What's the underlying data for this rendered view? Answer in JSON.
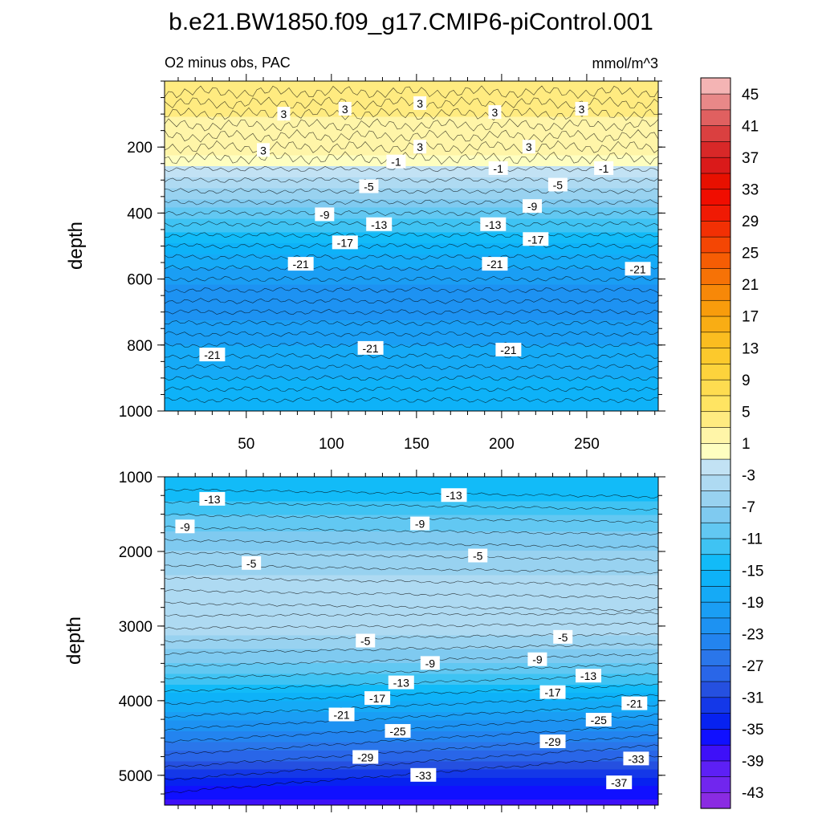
{
  "chart_data": {
    "type": "contour",
    "title": "b.e21.BW1850.f09_g17.CMIP6-piControl.001",
    "subtitle_left": "O2 minus obs, PAC",
    "subtitle_right": "mmol/m^3",
    "ylabel": "depth",
    "x_ticks": [
      "50",
      "100",
      "150",
      "200",
      "250"
    ],
    "x_tick_values": [
      50,
      100,
      150,
      200,
      250
    ],
    "xlim": [
      2,
      292
    ],
    "panels": [
      {
        "name": "upper",
        "ylim": [
          0,
          1000
        ],
        "y_ticks": [
          "200",
          "400",
          "600",
          "800",
          "1000"
        ],
        "y_tick_values": [
          200,
          400,
          600,
          800,
          1000
        ],
        "profile": [
          [
            0,
            3
          ],
          [
            100,
            3
          ],
          [
            200,
            2
          ],
          [
            240,
            0
          ],
          [
            275,
            -2
          ],
          [
            320,
            -5
          ],
          [
            380,
            -9
          ],
          [
            450,
            -13
          ],
          [
            520,
            -17
          ],
          [
            580,
            -20
          ],
          [
            650,
            -22
          ],
          [
            720,
            -21
          ],
          [
            800,
            -19
          ],
          [
            900,
            -17
          ],
          [
            1000,
            -15
          ]
        ],
        "contour_labels": [
          {
            "text": "3",
            "x": 72,
            "y": 100
          },
          {
            "text": "3",
            "x": 108,
            "y": 85
          },
          {
            "text": "3",
            "x": 152,
            "y": 68
          },
          {
            "text": "3",
            "x": 196,
            "y": 95
          },
          {
            "text": "3",
            "x": 247,
            "y": 85
          },
          {
            "text": "3",
            "x": 60,
            "y": 210
          },
          {
            "text": "3",
            "x": 152,
            "y": 200
          },
          {
            "text": "3",
            "x": 216,
            "y": 200
          },
          {
            "text": "-1",
            "x": 138,
            "y": 245
          },
          {
            "text": "-1",
            "x": 198,
            "y": 265
          },
          {
            "text": "-1",
            "x": 260,
            "y": 265
          },
          {
            "text": "-5",
            "x": 122,
            "y": 320
          },
          {
            "text": "-5",
            "x": 233,
            "y": 315
          },
          {
            "text": "-9",
            "x": 96,
            "y": 405
          },
          {
            "text": "-9",
            "x": 218,
            "y": 380
          },
          {
            "text": "-13",
            "x": 128,
            "y": 435
          },
          {
            "text": "-13",
            "x": 195,
            "y": 435
          },
          {
            "text": "-17",
            "x": 108,
            "y": 490
          },
          {
            "text": "-17",
            "x": 220,
            "y": 480
          },
          {
            "text": "-21",
            "x": 82,
            "y": 555
          },
          {
            "text": "-21",
            "x": 196,
            "y": 555
          },
          {
            "text": "-21",
            "x": 280,
            "y": 570
          },
          {
            "text": "-21",
            "x": 30,
            "y": 830
          },
          {
            "text": "-21",
            "x": 123,
            "y": 810
          },
          {
            "text": "-21",
            "x": 204,
            "y": 815
          }
        ]
      },
      {
        "name": "lower",
        "ylim": [
          1000,
          5400
        ],
        "y_ticks": [
          "1000",
          "2000",
          "3000",
          "4000",
          "5000"
        ],
        "y_tick_values": [
          1000,
          2000,
          3000,
          4000,
          5000
        ],
        "profile": [
          [
            1000,
            -15
          ],
          [
            1300,
            -13
          ],
          [
            1700,
            -9
          ],
          [
            2100,
            -6
          ],
          [
            2500,
            -4
          ],
          [
            2800,
            -4
          ],
          [
            3100,
            -5
          ],
          [
            3400,
            -8
          ],
          [
            3700,
            -12
          ],
          [
            4000,
            -17
          ],
          [
            4300,
            -22
          ],
          [
            4600,
            -26
          ],
          [
            4900,
            -31
          ],
          [
            5200,
            -36
          ],
          [
            5400,
            -38
          ]
        ],
        "contour_labels": [
          {
            "text": "-13",
            "x": 30,
            "y": 1300
          },
          {
            "text": "-9",
            "x": 14,
            "y": 1670
          },
          {
            "text": "-5",
            "x": 53,
            "y": 2160
          },
          {
            "text": "-13",
            "x": 172,
            "y": 1250
          },
          {
            "text": "-9",
            "x": 152,
            "y": 1630
          },
          {
            "text": "-5",
            "x": 186,
            "y": 2060
          },
          {
            "text": "-5",
            "x": 120,
            "y": 3200
          },
          {
            "text": "-9",
            "x": 158,
            "y": 3500
          },
          {
            "text": "-13",
            "x": 141,
            "y": 3760
          },
          {
            "text": "-17",
            "x": 127,
            "y": 3970
          },
          {
            "text": "-21",
            "x": 106,
            "y": 4190
          },
          {
            "text": "-25",
            "x": 139,
            "y": 4410
          },
          {
            "text": "-29",
            "x": 120,
            "y": 4760
          },
          {
            "text": "-33",
            "x": 154,
            "y": 5000
          },
          {
            "text": "-5",
            "x": 236,
            "y": 3150
          },
          {
            "text": "-9",
            "x": 221,
            "y": 3450
          },
          {
            "text": "-13",
            "x": 251,
            "y": 3670
          },
          {
            "text": "-17",
            "x": 230,
            "y": 3890
          },
          {
            "text": "-21",
            "x": 278,
            "y": 4040
          },
          {
            "text": "-25",
            "x": 257,
            "y": 4260
          },
          {
            "text": "-29",
            "x": 230,
            "y": 4550
          },
          {
            "text": "-33",
            "x": 279,
            "y": 4780
          },
          {
            "text": "-37",
            "x": 269,
            "y": 5100
          }
        ]
      }
    ],
    "colorbar": {
      "levels": [
        -45,
        -43,
        -41,
        -39,
        -37,
        -35,
        -33,
        -31,
        -29,
        -27,
        -25,
        -23,
        -21,
        -19,
        -17,
        -15,
        -13,
        -11,
        -9,
        -7,
        -5,
        -3,
        -1,
        1,
        3,
        5,
        7,
        9,
        11,
        13,
        15,
        17,
        19,
        21,
        23,
        25,
        27,
        29,
        31,
        33,
        35,
        37,
        39,
        41,
        43,
        45
      ],
      "colors": [
        "#8a2be2",
        "#7126ee",
        "#5d20f5",
        "#3e10f8",
        "#1010ff",
        "#0722f0",
        "#1438e8",
        "#2550e0",
        "#2966e8",
        "#2a76ea",
        "#2384ef",
        "#1d92f2",
        "#1a9ef4",
        "#15aaf6",
        "#0eb2f8",
        "#12bbf8",
        "#3fc3f3",
        "#62c8f2",
        "#7fcaf0",
        "#98d2f0",
        "#aedaf2",
        "#c2e2f4",
        "#fefec0",
        "#fff5a8",
        "#ffeb80",
        "#ffe462",
        "#fedc50",
        "#fdd33c",
        "#fcc92c",
        "#fbbd20",
        "#f9ad14",
        "#f89c0c",
        "#f78808",
        "#f67206",
        "#f65d04",
        "#f44604",
        "#f23004",
        "#f01a04",
        "#f00d00",
        "#e81000",
        "#da1a1a",
        "#d82828",
        "#da4040",
        "#e06060",
        "#e88888",
        "#f4b4b4"
      ],
      "labels": [
        "-43",
        "-39",
        "-35",
        "-31",
        "-27",
        "-23",
        "-19",
        "-15",
        "-11",
        "-7",
        "-3",
        "1",
        "5",
        "9",
        "13",
        "17",
        "21",
        "25",
        "29",
        "33",
        "37",
        "41",
        "45"
      ]
    }
  }
}
